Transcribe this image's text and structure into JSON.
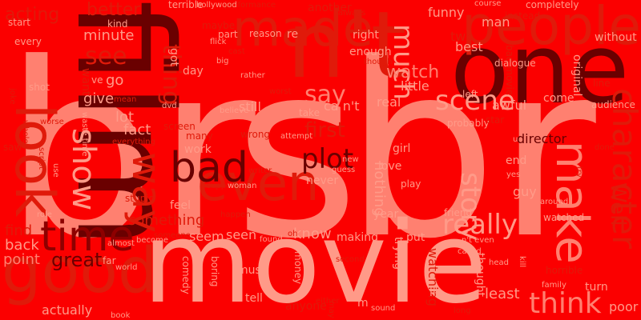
{
  "colors": {
    "background": "#fb0000",
    "light": "#ff8070",
    "pale": "#ff9a88",
    "mid": "#e01a0a",
    "red": "#e50000",
    "dark": "#8e0000",
    "deep": "#6a0000"
  },
  "words": [
    {
      "text": "br",
      "color": "light"
    },
    {
      "text": "s",
      "color": "light"
    },
    {
      "text": "br",
      "color": "light"
    },
    {
      "text": "film",
      "color": "deep"
    },
    {
      "text": "movie",
      "color": "pale"
    },
    {
      "text": "n't",
      "color": "mid"
    },
    {
      "text": "one",
      "color": "deep"
    },
    {
      "text": "people",
      "color": "mid"
    },
    {
      "text": "made",
      "color": "mid"
    },
    {
      "text": "even",
      "color": "mid"
    },
    {
      "text": "make",
      "color": "light"
    },
    {
      "text": "good",
      "color": "mid"
    },
    {
      "text": "time",
      "color": "dark"
    },
    {
      "text": "look",
      "color": "mid"
    },
    {
      "text": "bad",
      "color": "deep"
    },
    {
      "text": "character",
      "color": "mid"
    },
    {
      "text": "think",
      "color": "light"
    },
    {
      "text": "scene",
      "color": "pale"
    },
    {
      "text": "really",
      "color": "pale"
    },
    {
      "text": "plot",
      "color": "deep"
    },
    {
      "text": "way",
      "color": "mid"
    },
    {
      "text": "show",
      "color": "pale"
    },
    {
      "text": "story",
      "color": "pale"
    },
    {
      "text": "much",
      "color": "pale"
    },
    {
      "text": "say",
      "color": "light"
    },
    {
      "text": "see",
      "color": "mid"
    },
    {
      "text": "thing",
      "color": "mid"
    },
    {
      "text": "Well",
      "color": "mid"
    },
    {
      "text": "watch",
      "color": "light"
    },
    {
      "text": "first",
      "color": "mid"
    },
    {
      "text": "better",
      "color": "mid"
    },
    {
      "text": "acting",
      "color": "mid"
    },
    {
      "text": "minute",
      "color": "pale"
    },
    {
      "text": "know",
      "color": "pale"
    },
    {
      "text": "seen",
      "color": "pale"
    },
    {
      "text": "still",
      "color": "pale"
    },
    {
      "text": "great",
      "color": "deep"
    },
    {
      "text": "point",
      "color": "light"
    },
    {
      "text": "find",
      "color": "mid"
    },
    {
      "text": "back",
      "color": "pale"
    },
    {
      "text": "least",
      "color": "pale"
    },
    {
      "text": "fact",
      "color": "pale"
    },
    {
      "text": "lot",
      "color": "pale"
    },
    {
      "text": "give",
      "color": "pale"
    },
    {
      "text": "go",
      "color": "pale"
    },
    {
      "text": "actually",
      "color": "pale"
    },
    {
      "text": "something",
      "color": "mid"
    },
    {
      "text": "seem",
      "color": "pale"
    },
    {
      "text": "director",
      "color": "deep"
    },
    {
      "text": "funny",
      "color": "pale"
    },
    {
      "text": "another",
      "color": "mid"
    },
    {
      "text": "right",
      "color": "pale"
    },
    {
      "text": "man",
      "color": "pale"
    },
    {
      "text": "two",
      "color": "mid"
    },
    {
      "text": "best",
      "color": "pale"
    },
    {
      "text": "real",
      "color": "pale"
    },
    {
      "text": "little",
      "color": "pale"
    },
    {
      "text": "awful",
      "color": "pale"
    },
    {
      "text": "come",
      "color": "pale"
    },
    {
      "text": "girl",
      "color": "pale"
    },
    {
      "text": "love",
      "color": "pale"
    },
    {
      "text": "never",
      "color": "pale"
    },
    {
      "text": "nothing",
      "color": "pale"
    },
    {
      "text": "end",
      "color": "pale"
    },
    {
      "text": "guy",
      "color": "pale"
    },
    {
      "text": "play",
      "color": "pale"
    },
    {
      "text": "watched",
      "color": "pale"
    },
    {
      "text": "friend",
      "color": "pale"
    },
    {
      "text": "trying",
      "color": "pale"
    },
    {
      "text": "thought",
      "color": "pale"
    },
    {
      "text": "watching",
      "color": "mid"
    },
    {
      "text": "put",
      "color": "pale"
    },
    {
      "text": "making",
      "color": "pale"
    },
    {
      "text": "year",
      "color": "pale"
    },
    {
      "text": "must",
      "color": "pale"
    },
    {
      "text": "tell",
      "color": "pale"
    },
    {
      "text": "anyone",
      "color": "mid"
    },
    {
      "text": "ll",
      "color": "pale"
    },
    {
      "text": "m",
      "color": "pale"
    },
    {
      "text": "money",
      "color": "pale"
    },
    {
      "text": "boring",
      "color": "pale"
    },
    {
      "text": "comedy",
      "color": "pale"
    },
    {
      "text": "original",
      "color": "pale"
    },
    {
      "text": "ca n't",
      "color": "pale"
    },
    {
      "text": "re",
      "color": "pale"
    },
    {
      "text": "reason",
      "color": "pale"
    },
    {
      "text": "part",
      "color": "pale"
    },
    {
      "text": "day",
      "color": "pale"
    },
    {
      "text": "got",
      "color": "pale"
    },
    {
      "text": "want",
      "color": "mid"
    },
    {
      "text": "ve",
      "color": "pale"
    },
    {
      "text": "shot",
      "color": "pale"
    },
    {
      "text": "every",
      "color": "pale"
    },
    {
      "text": "start",
      "color": "pale"
    },
    {
      "text": "kind",
      "color": "pale"
    },
    {
      "text": "terrible",
      "color": "pale"
    },
    {
      "text": "feel",
      "color": "pale"
    },
    {
      "text": "stupid",
      "color": "mid"
    },
    {
      "text": "work",
      "color": "pale"
    },
    {
      "text": "many",
      "color": "mid"
    },
    {
      "text": "take",
      "color": "pale"
    },
    {
      "text": "wrong",
      "color": "mid"
    },
    {
      "text": "enough",
      "color": "pale"
    },
    {
      "text": "without",
      "color": "pale"
    },
    {
      "text": "line",
      "color": "mid"
    },
    {
      "text": "audience",
      "color": "pale"
    },
    {
      "text": "instead",
      "color": "mid"
    },
    {
      "text": "course",
      "color": "pale"
    },
    {
      "text": "completely",
      "color": "pale"
    },
    {
      "text": "performance",
      "color": "mid"
    },
    {
      "text": "hollywood",
      "color": "pale"
    },
    {
      "text": "always",
      "color": "mid"
    },
    {
      "text": "though",
      "color": "mid"
    },
    {
      "text": "bad movie",
      "color": "mid"
    },
    {
      "text": "dialogue",
      "color": "pale"
    },
    {
      "text": "left",
      "color": "pale"
    },
    {
      "text": "probably",
      "color": "pale"
    },
    {
      "text": "star",
      "color": "mid"
    },
    {
      "text": "u",
      "color": "pale"
    },
    {
      "text": "done",
      "color": "mid"
    },
    {
      "text": "yes",
      "color": "pale"
    },
    {
      "text": "around",
      "color": "pale"
    },
    {
      "text": "try",
      "color": "mid"
    },
    {
      "text": "n't even",
      "color": "pale"
    },
    {
      "text": "called",
      "color": "pale"
    },
    {
      "text": "head",
      "color": "pale"
    },
    {
      "text": "kill",
      "color": "pale"
    },
    {
      "text": "horrible",
      "color": "mid"
    },
    {
      "text": "family",
      "color": "pale"
    },
    {
      "text": "turn",
      "color": "pale"
    },
    {
      "text": "poor",
      "color": "pale"
    },
    {
      "text": "long",
      "color": "mid"
    },
    {
      "text": "sound",
      "color": "pale"
    },
    {
      "text": "may",
      "color": "mid"
    },
    {
      "text": "either",
      "color": "mid"
    },
    {
      "text": "second",
      "color": "mid"
    },
    {
      "text": "oh",
      "color": "mid"
    },
    {
      "text": "found",
      "color": "pale"
    },
    {
      "text": "happen",
      "color": "mid"
    },
    {
      "text": "guess",
      "color": "pale"
    },
    {
      "text": "new",
      "color": "pale"
    },
    {
      "text": "attempt",
      "color": "pale"
    },
    {
      "text": "writer",
      "color": "mid"
    },
    {
      "text": "believe",
      "color": "pale"
    },
    {
      "text": "rather",
      "color": "pale"
    },
    {
      "text": "worst",
      "color": "mid"
    },
    {
      "text": "cast",
      "color": "mid"
    },
    {
      "text": "maybe",
      "color": "mid"
    },
    {
      "text": "flick",
      "color": "pale"
    },
    {
      "text": "big",
      "color": "pale"
    },
    {
      "text": "mean",
      "color": "mid"
    },
    {
      "text": "worse",
      "color": "mid"
    },
    {
      "text": "dvd",
      "color": "pale"
    },
    {
      "text": "screen",
      "color": "mid"
    },
    {
      "text": "everything",
      "color": "mid"
    },
    {
      "text": "someone",
      "color": "mid"
    },
    {
      "text": "become",
      "color": "pale"
    },
    {
      "text": "almost",
      "color": "pale"
    },
    {
      "text": "world",
      "color": "pale"
    },
    {
      "text": "book",
      "color": "pale"
    },
    {
      "text": "role",
      "color": "pale"
    },
    {
      "text": "supposed",
      "color": "mid"
    },
    {
      "text": "woman",
      "color": "pale"
    },
    {
      "text": "far",
      "color": "pale"
    },
    {
      "text": "saw",
      "color": "mid"
    },
    {
      "text": "script",
      "color": "mid"
    },
    {
      "text": "whole",
      "color": "mid"
    },
    {
      "text": "use",
      "color": "pale"
    },
    {
      "text": "joke",
      "color": "mid"
    },
    {
      "text": "waste time",
      "color": "pale"
    },
    {
      "text": "actor",
      "color": "mid"
    }
  ]
}
